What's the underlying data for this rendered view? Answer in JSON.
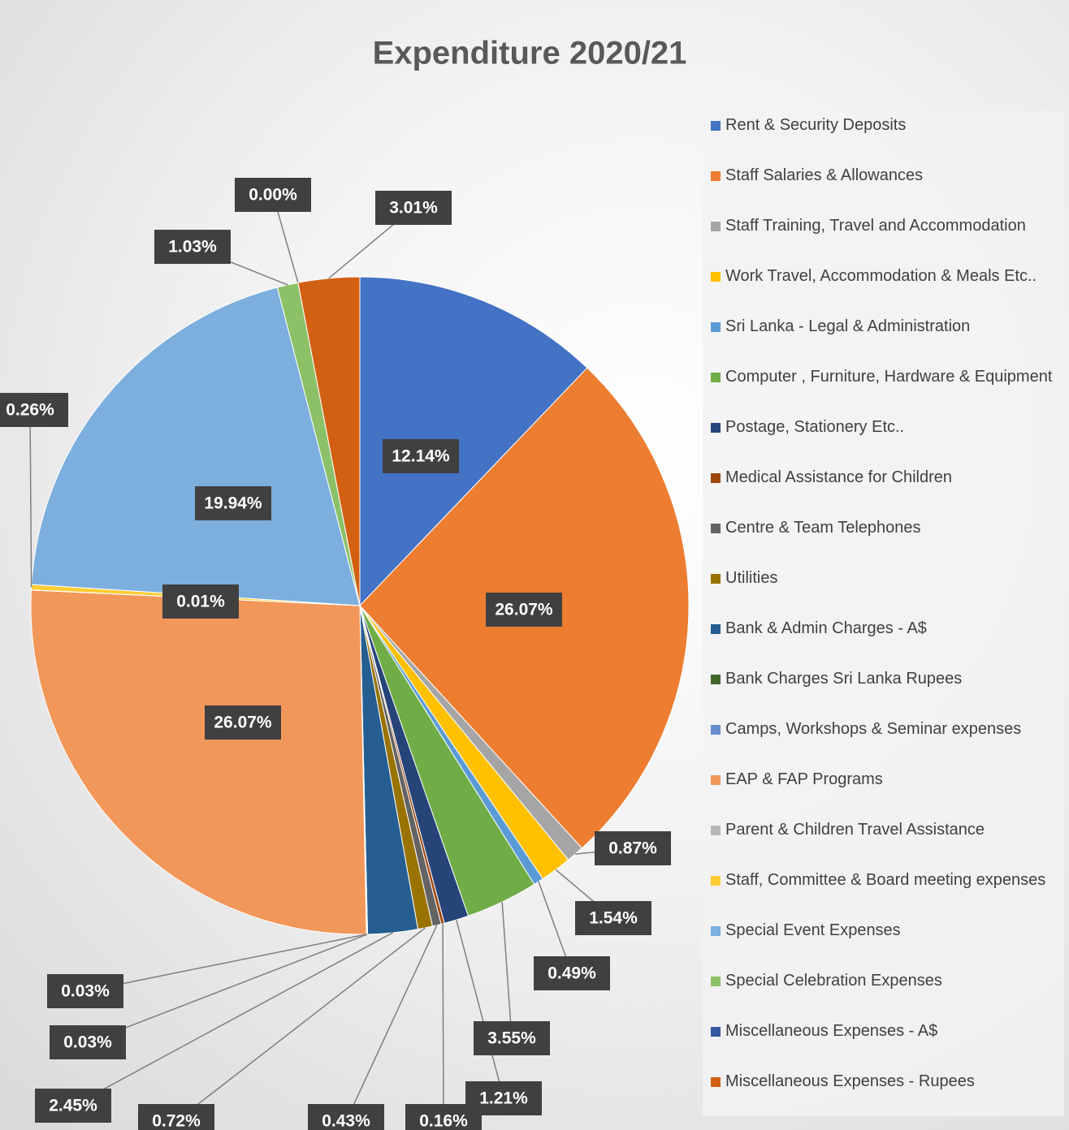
{
  "chart_data": {
    "type": "pie",
    "title": "Expenditure 2020/21",
    "categories": [
      "Rent & Security Deposits",
      "Staff Salaries & Allowances",
      "Staff Training, Travel and Accommodation",
      "Work Travel, Accommodation & Meals Etc..",
      "Sri Lanka - Legal & Administration",
      "Computer , Furniture, Hardware & Equipment",
      "Postage, Stationery Etc..",
      "Medical Assistance for Children",
      "Centre & Team Telephones",
      "Utilities",
      "Bank & Admin Charges - A$",
      "Bank Charges Sri Lanka Rupees",
      "Camps, Workshops & Seminar expenses",
      "EAP & FAP Programs",
      "Parent & Children Travel Assistance",
      "Staff, Committee & Board meeting expenses",
      "Special Event Expenses",
      "Special Celebration Expenses",
      "Miscellaneous Expenses - A$",
      "Miscellaneous Expenses - Rupees"
    ],
    "values": [
      12.14,
      26.07,
      0.87,
      1.54,
      0.49,
      3.55,
      1.21,
      0.16,
      0.43,
      0.72,
      2.45,
      0.03,
      0.03,
      26.07,
      0.01,
      0.26,
      19.94,
      1.03,
      0.0,
      3.01
    ],
    "value_labels": [
      "12.14%",
      "26.07%",
      "0.87%",
      "1.54%",
      "0.49%",
      "3.55%",
      "1.21%",
      "0.16%",
      "0.43%",
      "0.72%",
      "2.45%",
      "0.03%",
      "0.03%",
      "26.07%",
      "0.01%",
      "0.26%",
      "19.94%",
      "1.03%",
      "0.00%",
      "3.01%"
    ],
    "colors": [
      "#4472c4",
      "#ed7d31",
      "#a5a5a5",
      "#ffc000",
      "#5b9bd5",
      "#70ad47",
      "#264478",
      "#9e480e",
      "#636363",
      "#997300",
      "#255e91",
      "#43682b",
      "#698ed0",
      "#f1975a",
      "#b7b7b7",
      "#ffcd33",
      "#7cafdd",
      "#8cc168",
      "#335aa1",
      "#d26012"
    ],
    "legend": "right"
  }
}
